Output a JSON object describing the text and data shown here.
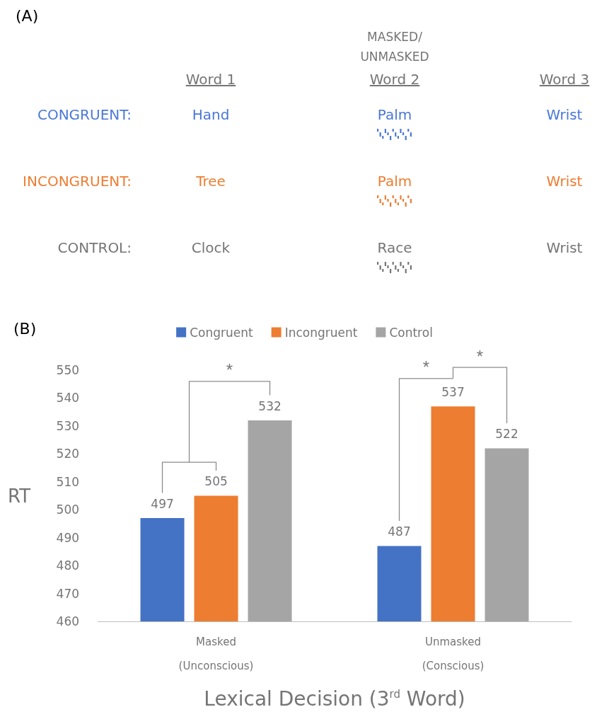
{
  "chart_data": [
    {
      "type": "other",
      "title": "(A)",
      "annotations": [
        "MASKED/\nUNMASKED"
      ],
      "categories": [
        "Word 1",
        "Word 2",
        "Word 3"
      ],
      "y_categories": [
        "CONGRUENT:",
        "INCONGRUENT:",
        "CONTROL:"
      ],
      "cell_labels": [
        [
          "Hand",
          "Palm",
          "Wrist"
        ],
        [
          "Tree",
          "Palm",
          "Wrist"
        ],
        [
          "Clock",
          "Race",
          "Wrist"
        ]
      ],
      "colors": [
        "#4a78d6",
        "#ed7d31",
        "#757575"
      ]
    },
    {
      "type": "bar",
      "title": "(B)",
      "categories": [
        "Masked\n(Unconscious)",
        "Unmasked\n(Conscious)"
      ],
      "series": [
        {
          "name": "Congruent",
          "color": "#4472c4",
          "values": [
            497,
            487
          ]
        },
        {
          "name": "Incongruent",
          "color": "#ed7d31",
          "values": [
            505,
            537
          ]
        },
        {
          "name": "Control",
          "color": "#a5a5a5",
          "values": [
            532,
            522
          ]
        }
      ],
      "xlabel": "Lexical Decision (3$^{rd}$ Word)",
      "ylabel": "RT",
      "ylim": [
        460,
        550
      ],
      "yticks": [
        460,
        470,
        480,
        490,
        500,
        510,
        520,
        530,
        540,
        550
      ],
      "data_labels": true,
      "legend": "top",
      "grid": false,
      "annotations": [
        "*",
        "*",
        "*"
      ]
    }
  ]
}
